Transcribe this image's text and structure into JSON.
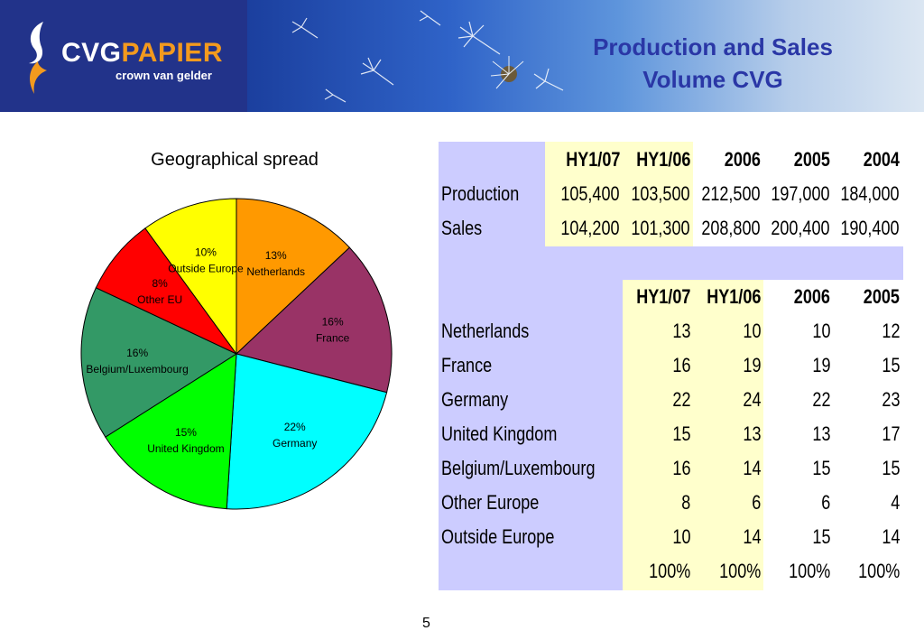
{
  "header": {
    "brand_white": "CVG",
    "brand_orange": "PAPIER",
    "tagline": "crown van gelder",
    "title_line1": "Production and Sales",
    "title_line2": "Volume CVG"
  },
  "chart_data": {
    "type": "pie",
    "title": "Geographical spread",
    "slices": [
      {
        "label": "Netherlands",
        "value": 13,
        "pct_label": "13%",
        "color": "#ff9900"
      },
      {
        "label": "France",
        "value": 16,
        "pct_label": "16%",
        "color": "#993366"
      },
      {
        "label": "Germany",
        "value": 22,
        "pct_label": "22%",
        "color": "#00ffff"
      },
      {
        "label": "United Kingdom",
        "value": 15,
        "pct_label": "15%",
        "color": "#00ff00"
      },
      {
        "label": "Belgium/Luxembourg",
        "value": 16,
        "pct_label": "16%",
        "color": "#339966"
      },
      {
        "label": "Other EU",
        "value": 8,
        "pct_label": "8%",
        "color": "#ff0000"
      },
      {
        "label": "Outside Europe",
        "value": 10,
        "pct_label": "10%",
        "color": "#ffff00"
      }
    ]
  },
  "volume_table": {
    "headers": [
      "HY1/07",
      "HY1/06",
      "2006",
      "2005",
      "2004"
    ],
    "rows": [
      {
        "label": "Production",
        "values": [
          "105,400",
          "103,500",
          "212,500",
          "197,000",
          "184,000"
        ]
      },
      {
        "label": "Sales",
        "values": [
          "104,200",
          "101,300",
          "208,800",
          "200,400",
          "190,400"
        ]
      }
    ]
  },
  "spread_table": {
    "headers": [
      "HY1/07",
      "HY1/06",
      "2006",
      "2005"
    ],
    "rows": [
      {
        "label": "Netherlands",
        "values": [
          "13",
          "10",
          "10",
          "12"
        ]
      },
      {
        "label": "France",
        "values": [
          "16",
          "19",
          "19",
          "15"
        ]
      },
      {
        "label": "Germany",
        "values": [
          "22",
          "24",
          "22",
          "23"
        ]
      },
      {
        "label": "United Kingdom",
        "values": [
          "15",
          "13",
          "13",
          "17"
        ]
      },
      {
        "label": "Belgium/Luxembourg",
        "values": [
          "16",
          "14",
          "15",
          "15"
        ]
      },
      {
        "label": "Other Europe",
        "values": [
          "8",
          "6",
          "6",
          "4"
        ]
      },
      {
        "label": "Outside Europe",
        "values": [
          "10",
          "14",
          "15",
          "14"
        ]
      }
    ],
    "totals": [
      "100%",
      "100%",
      "100%",
      "100%"
    ]
  },
  "footer": {
    "page_number": "5"
  }
}
